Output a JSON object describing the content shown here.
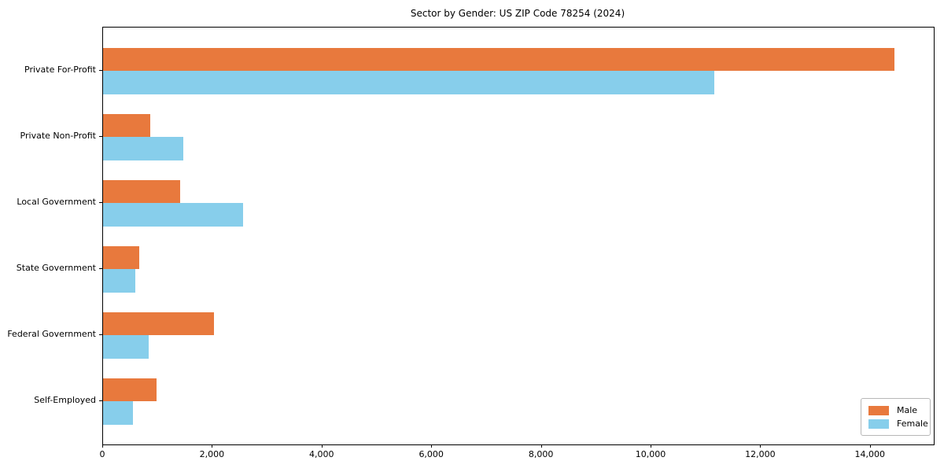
{
  "title": "Sector by Gender: US ZIP Code 78254 (2024)",
  "chart_data": {
    "type": "bar",
    "orientation": "horizontal",
    "title": "Sector by Gender: US ZIP Code 78254 (2024)",
    "categories": [
      "Private For-Profit",
      "Private Non-Profit",
      "Local Government",
      "State Government",
      "Federal Government",
      "Self-Employed"
    ],
    "series": [
      {
        "name": "Male",
        "color": "#e8793d",
        "values": [
          14430,
          860,
          1410,
          660,
          2020,
          980
        ]
      },
      {
        "name": "Female",
        "color": "#87ceeb",
        "values": [
          11140,
          1460,
          2560,
          590,
          830,
          545
        ]
      }
    ],
    "xlabel": "",
    "ylabel": "",
    "xlim": [
      0,
      15150
    ],
    "x_tick_values": [
      0,
      2000,
      4000,
      6000,
      8000,
      10000,
      12000,
      14000
    ],
    "x_tick_labels": [
      "0",
      "2,000",
      "4,000",
      "6,000",
      "8,000",
      "10,000",
      "12,000",
      "14,000"
    ],
    "grid": false,
    "legend_position": "lower right",
    "legend_labels": [
      "Male",
      "Female"
    ],
    "frame_color": "#000000",
    "background_color": "#ffffff"
  }
}
